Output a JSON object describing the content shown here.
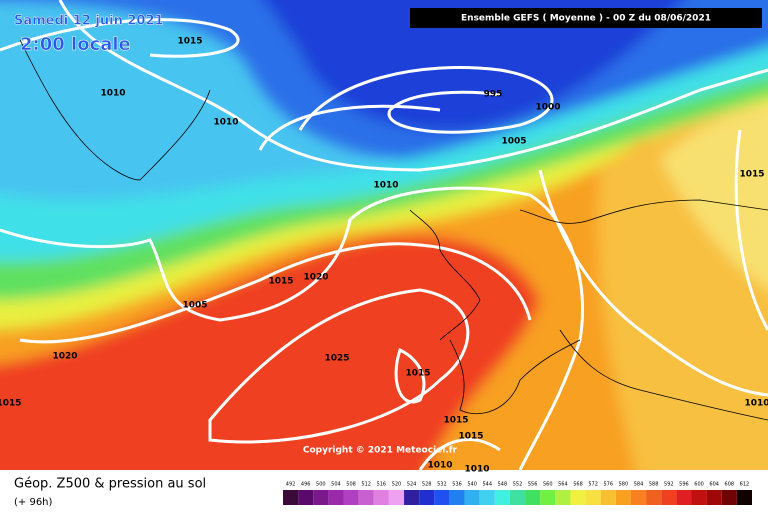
{
  "header": {
    "date": "Samedi 12 juin 2021",
    "time": "2:00 locale",
    "model": "Ensemble GEFS  ( Moyenne )  -  00 Z du 08/06/2021"
  },
  "isobars": [
    "1015",
    "1010",
    "1010",
    "995",
    "1000",
    "1005",
    "1010",
    "1015",
    "1015",
    "1020",
    "1005",
    "1020",
    "1025",
    "1015",
    "1015",
    "1015",
    "1015",
    "1010",
    "1010",
    "1010"
  ],
  "copyright": "Copyright © 2021 Meteociel.fr",
  "footer": {
    "title": "Géop. Z500 & pression au sol",
    "lead": "(+ 96h)"
  },
  "scale": {
    "labels": [
      492,
      496,
      500,
      504,
      508,
      512,
      516,
      520,
      524,
      528,
      532,
      536,
      540,
      544,
      548,
      552,
      556,
      560,
      564,
      568,
      572,
      576,
      580,
      584,
      588,
      592,
      596,
      600,
      604,
      608,
      612
    ],
    "colors": [
      "#3a0a3a",
      "#5a0a6a",
      "#7a1a8a",
      "#9a2aaa",
      "#b040c0",
      "#c860d0",
      "#e080e0",
      "#f0a0f0",
      "#3020a0",
      "#2030d0",
      "#2050f0",
      "#2080f0",
      "#30b0f0",
      "#40d0f0",
      "#40f0e0",
      "#40e0a0",
      "#40e060",
      "#70f040",
      "#b0f040",
      "#f0f040",
      "#f8e040",
      "#f8c030",
      "#f8a020",
      "#f88020",
      "#f06020",
      "#f04020",
      "#e02020",
      "#c01010",
      "#a00808",
      "#700404",
      "#100000"
    ]
  }
}
